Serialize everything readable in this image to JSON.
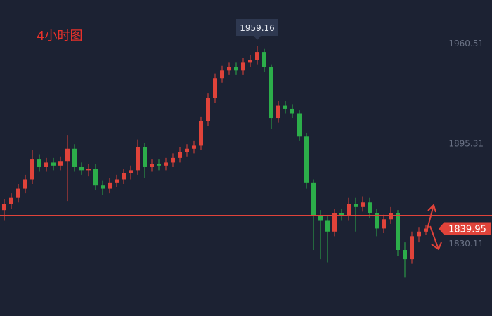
{
  "chart_data": {
    "type": "candlestick",
    "title": "4小时图",
    "open": [
      1852,
      1856,
      1860,
      1866,
      1872,
      1885,
      1880,
      1883,
      1881,
      1884,
      1892,
      1880,
      1878,
      1879,
      1868,
      1866,
      1870,
      1872,
      1876,
      1878,
      1893,
      1880,
      1882,
      1881,
      1883,
      1886,
      1890,
      1892,
      1894,
      1910,
      1925,
      1938,
      1943,
      1945,
      1943,
      1948,
      1950,
      1955,
      1945,
      1912,
      1920,
      1918,
      1915,
      1900,
      1870,
      1848,
      1845,
      1838,
      1850,
      1848,
      1856,
      1854,
      1857,
      1850,
      1840,
      1846,
      1850,
      1826,
      1820,
      1835,
      1838
    ],
    "high": [
      1859,
      1863,
      1869,
      1875,
      1891,
      1888,
      1886,
      1886,
      1887,
      1901,
      1895,
      1883,
      1882,
      1882,
      1871,
      1873,
      1875,
      1879,
      1881,
      1898,
      1896,
      1885,
      1885,
      1886,
      1889,
      1893,
      1895,
      1897,
      1913,
      1928,
      1941,
      1946,
      1948,
      1948,
      1951,
      1953,
      1959.16,
      1957,
      1947,
      1923,
      1923,
      1921,
      1917,
      1902,
      1872,
      1852,
      1848,
      1853,
      1853,
      1860,
      1860,
      1861,
      1860,
      1853,
      1849,
      1854,
      1852,
      1831,
      1838,
      1841,
      1842
    ],
    "low": [
      1845,
      1853,
      1857,
      1863,
      1869,
      1877,
      1877,
      1878,
      1878,
      1858,
      1877,
      1875,
      1874,
      1865,
      1862,
      1863,
      1867,
      1869,
      1872,
      1875,
      1873,
      1877,
      1878,
      1878,
      1880,
      1883,
      1887,
      1889,
      1891,
      1907,
      1922,
      1935,
      1940,
      1940,
      1940,
      1945,
      1947,
      1942,
      1905,
      1909,
      1915,
      1912,
      1897,
      1866,
      1826,
      1820,
      1818,
      1835,
      1845,
      1845,
      1838,
      1851,
      1847,
      1835,
      1837,
      1843,
      1822,
      1808,
      1817,
      1831,
      1836
    ],
    "close": [
      1856,
      1860,
      1866,
      1872,
      1885,
      1880,
      1883,
      1881,
      1884,
      1892,
      1880,
      1878,
      1879,
      1868,
      1866,
      1870,
      1872,
      1876,
      1878,
      1893,
      1880,
      1882,
      1881,
      1883,
      1886,
      1890,
      1892,
      1894,
      1910,
      1925,
      1938,
      1943,
      1945,
      1943,
      1948,
      1950,
      1955,
      1945,
      1912,
      1920,
      1918,
      1915,
      1900,
      1870,
      1848,
      1845,
      1838,
      1850,
      1848,
      1856,
      1854,
      1857,
      1850,
      1840,
      1846,
      1850,
      1826,
      1820,
      1835,
      1838,
      1839.95
    ],
    "up_color": "#e0433a",
    "down_color": "#2cae4a",
    "hline": 1848.4,
    "hline_color": "#e0433a",
    "ylim": [
      1782.99,
      1988.9
    ],
    "yticks": [
      1830.11,
      1895.31,
      1960.51
    ]
  }
}
